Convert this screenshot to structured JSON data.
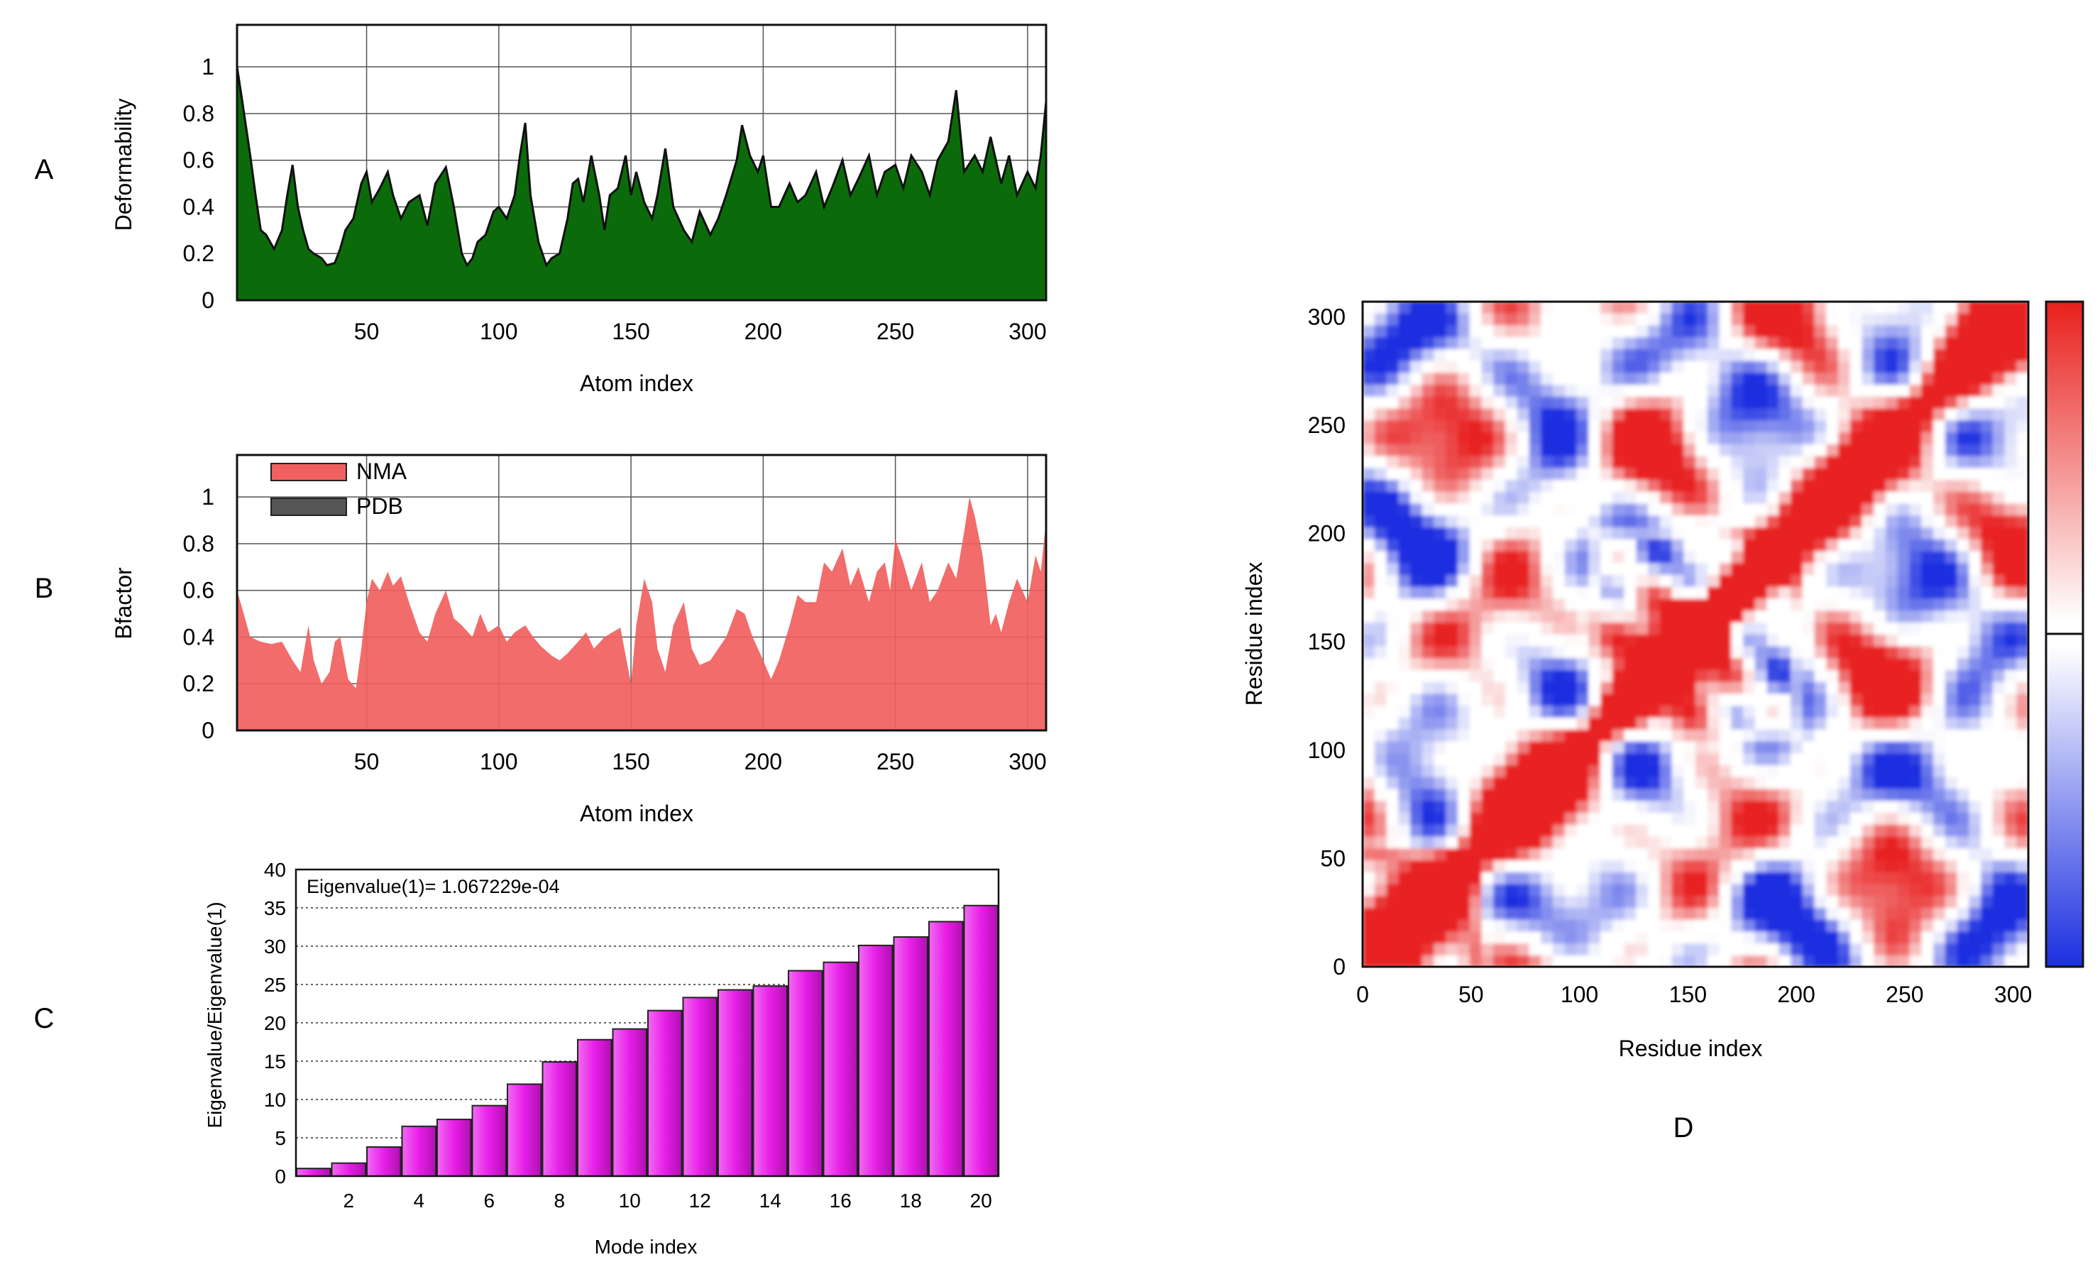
{
  "panels": {
    "A": {
      "letter": "A"
    },
    "B": {
      "letter": "B"
    },
    "C": {
      "letter": "C"
    },
    "D": {
      "letter": "D"
    }
  },
  "colors": {
    "deform_fill": "#0b6b0b",
    "deform_line": "#101010",
    "nma_fill": "#f0605e",
    "pdb_fill": "#555555",
    "bar_fill": "#e81ee8",
    "grid": "#555555",
    "map_red": "#e8201c",
    "map_blue": "#1c2fe0"
  },
  "chart_data": [
    {
      "id": "A",
      "type": "area",
      "title": "",
      "xlabel": "Atom index",
      "ylabel": "Deformability",
      "xlim": [
        1,
        307
      ],
      "ylim": [
        0,
        1.18
      ],
      "xticks": [
        "50",
        "100",
        "150",
        "200",
        "250",
        "300"
      ],
      "yticks": [
        "0",
        "0.2",
        "0.4",
        "0.6",
        "0.8",
        "1"
      ],
      "grid": true,
      "series": [
        {
          "name": "Deformability",
          "x": [
            1,
            3,
            6,
            8,
            10,
            12,
            15,
            18,
            20,
            22,
            24,
            26,
            28,
            30,
            33,
            35,
            38,
            40,
            42,
            45,
            48,
            50,
            52,
            55,
            58,
            60,
            63,
            66,
            70,
            73,
            76,
            80,
            83,
            86,
            88,
            90,
            92,
            95,
            98,
            100,
            103,
            106,
            108,
            110,
            112,
            115,
            118,
            120,
            123,
            126,
            128,
            130,
            132,
            135,
            138,
            140,
            142,
            145,
            148,
            150,
            152,
            155,
            158,
            160,
            163,
            166,
            170,
            173,
            176,
            180,
            183,
            186,
            190,
            192,
            195,
            198,
            200,
            203,
            206,
            210,
            213,
            216,
            220,
            223,
            226,
            230,
            233,
            236,
            240,
            243,
            246,
            250,
            253,
            256,
            260,
            263,
            266,
            270,
            273,
            276,
            280,
            283,
            286,
            290,
            293,
            296,
            300,
            303,
            305,
            307
          ],
          "y": [
            1.0,
            0.85,
            0.62,
            0.45,
            0.3,
            0.28,
            0.22,
            0.3,
            0.45,
            0.58,
            0.4,
            0.3,
            0.22,
            0.2,
            0.18,
            0.15,
            0.16,
            0.22,
            0.3,
            0.35,
            0.5,
            0.55,
            0.42,
            0.48,
            0.55,
            0.45,
            0.35,
            0.42,
            0.45,
            0.32,
            0.5,
            0.57,
            0.4,
            0.2,
            0.15,
            0.18,
            0.25,
            0.28,
            0.38,
            0.4,
            0.35,
            0.45,
            0.62,
            0.76,
            0.45,
            0.25,
            0.15,
            0.18,
            0.2,
            0.35,
            0.5,
            0.52,
            0.42,
            0.62,
            0.45,
            0.3,
            0.45,
            0.48,
            0.62,
            0.45,
            0.55,
            0.42,
            0.35,
            0.45,
            0.65,
            0.4,
            0.3,
            0.25,
            0.38,
            0.28,
            0.35,
            0.45,
            0.6,
            0.75,
            0.62,
            0.55,
            0.62,
            0.4,
            0.4,
            0.5,
            0.42,
            0.45,
            0.55,
            0.4,
            0.48,
            0.6,
            0.45,
            0.52,
            0.62,
            0.45,
            0.55,
            0.58,
            0.48,
            0.62,
            0.55,
            0.45,
            0.6,
            0.68,
            0.9,
            0.55,
            0.62,
            0.55,
            0.7,
            0.5,
            0.62,
            0.45,
            0.55,
            0.48,
            0.62,
            0.85
          ]
        }
      ]
    },
    {
      "id": "B",
      "type": "area",
      "title": "",
      "xlabel": "Atom index",
      "ylabel": "Bfactor",
      "xlim": [
        1,
        307
      ],
      "ylim": [
        0,
        1.18
      ],
      "xticks": [
        "50",
        "100",
        "150",
        "200",
        "250",
        "300"
      ],
      "yticks": [
        "0",
        "0.2",
        "0.4",
        "0.6",
        "0.8",
        "1"
      ],
      "grid": true,
      "legend": {
        "position": "top-left",
        "entries": [
          "NMA",
          "PDB"
        ]
      },
      "series": [
        {
          "name": "NMA",
          "x": [
            1,
            3,
            6,
            10,
            14,
            18,
            22,
            25,
            28,
            30,
            33,
            36,
            38,
            40,
            43,
            46,
            48,
            50,
            52,
            55,
            58,
            60,
            63,
            66,
            70,
            73,
            76,
            80,
            83,
            86,
            90,
            93,
            96,
            100,
            103,
            106,
            110,
            113,
            116,
            120,
            123,
            126,
            130,
            133,
            136,
            140,
            143,
            146,
            148,
            150,
            152,
            155,
            158,
            160,
            163,
            166,
            170,
            173,
            176,
            180,
            183,
            186,
            190,
            193,
            196,
            200,
            203,
            206,
            210,
            213,
            216,
            220,
            223,
            226,
            230,
            233,
            236,
            240,
            243,
            246,
            248,
            250,
            253,
            256,
            260,
            263,
            266,
            270,
            273,
            276,
            278,
            280,
            283,
            286,
            288,
            290,
            293,
            296,
            300,
            303,
            305,
            307
          ],
          "y": [
            0.6,
            0.52,
            0.4,
            0.38,
            0.37,
            0.38,
            0.3,
            0.25,
            0.45,
            0.3,
            0.2,
            0.25,
            0.38,
            0.4,
            0.22,
            0.18,
            0.35,
            0.55,
            0.65,
            0.6,
            0.68,
            0.62,
            0.66,
            0.55,
            0.42,
            0.38,
            0.5,
            0.6,
            0.48,
            0.45,
            0.4,
            0.5,
            0.42,
            0.45,
            0.38,
            0.42,
            0.45,
            0.4,
            0.36,
            0.32,
            0.3,
            0.33,
            0.38,
            0.42,
            0.35,
            0.4,
            0.42,
            0.44,
            0.32,
            0.2,
            0.45,
            0.65,
            0.55,
            0.35,
            0.25,
            0.45,
            0.55,
            0.35,
            0.28,
            0.3,
            0.35,
            0.4,
            0.52,
            0.5,
            0.4,
            0.3,
            0.22,
            0.3,
            0.45,
            0.58,
            0.55,
            0.55,
            0.72,
            0.68,
            0.78,
            0.62,
            0.7,
            0.55,
            0.68,
            0.72,
            0.6,
            0.82,
            0.72,
            0.6,
            0.72,
            0.55,
            0.6,
            0.72,
            0.65,
            0.85,
            1.0,
            0.92,
            0.75,
            0.45,
            0.5,
            0.42,
            0.55,
            0.65,
            0.55,
            0.75,
            0.68,
            0.9
          ]
        }
      ]
    },
    {
      "id": "C",
      "type": "bar",
      "title": "",
      "xlabel": "Mode index",
      "ylabel": "Eigenvalue/Eigenvalue(1)",
      "annotation": "Eigenvalue(1)= 1.067229e-04",
      "ylim": [
        0,
        40
      ],
      "xticks": [
        "2",
        "4",
        "6",
        "8",
        "10",
        "12",
        "14",
        "16",
        "18",
        "20"
      ],
      "yticks": [
        "0",
        "5",
        "10",
        "15",
        "20",
        "25",
        "30",
        "35",
        "40"
      ],
      "grid": true,
      "categories": [
        1,
        2,
        3,
        4,
        5,
        6,
        7,
        8,
        9,
        10,
        11,
        12,
        13,
        14,
        15,
        16,
        17,
        18,
        19,
        20
      ],
      "values": [
        1.0,
        1.7,
        3.8,
        6.5,
        7.4,
        9.2,
        12.0,
        14.9,
        17.8,
        19.2,
        21.6,
        23.3,
        24.3,
        24.8,
        26.8,
        27.9,
        30.1,
        31.2,
        33.2,
        35.3
      ]
    },
    {
      "id": "D",
      "type": "heatmap",
      "title": "",
      "xlabel": "Residue index",
      "ylabel": "Residue index",
      "xlim": [
        0,
        307
      ],
      "ylim": [
        0,
        307
      ],
      "xticks": [
        "0",
        "50",
        "100",
        "150",
        "200",
        "250",
        "300"
      ],
      "yticks": [
        "0",
        "50",
        "100",
        "150",
        "200",
        "250",
        "300"
      ],
      "colorbar": {
        "low": "blue",
        "mid": "white",
        "high": "red"
      },
      "grid": false
    }
  ]
}
